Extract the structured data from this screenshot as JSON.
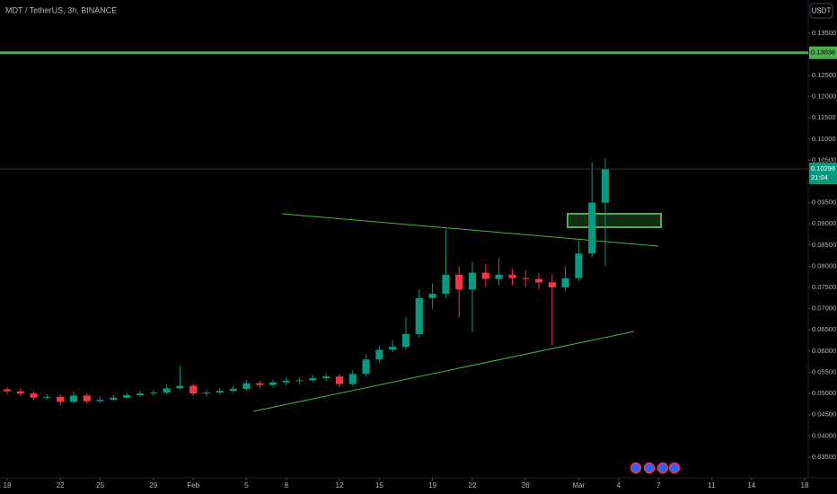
{
  "chart_data": {
    "type": "candlestick",
    "title": "MDT / TetherUS, 3h, BINANCE",
    "currency": "USDT",
    "x": [
      0,
      1,
      2,
      3,
      4,
      5,
      6,
      7,
      8,
      9,
      10,
      11,
      12,
      13,
      14,
      15,
      16,
      17,
      18,
      19,
      20,
      21,
      22,
      23,
      24,
      25,
      26,
      27,
      28,
      29,
      30,
      31,
      32,
      33,
      34,
      35,
      36,
      37,
      38,
      39,
      40,
      41,
      42,
      43,
      44,
      45
    ],
    "open": [
      0.051,
      0.0505,
      0.05,
      0.049,
      0.0492,
      0.048,
      0.0495,
      0.0482,
      0.0485,
      0.049,
      0.0496,
      0.05,
      0.0502,
      0.0512,
      0.0518,
      0.05,
      0.0502,
      0.0506,
      0.0511,
      0.0524,
      0.052,
      0.0526,
      0.053,
      0.0531,
      0.0536,
      0.054,
      0.0522,
      0.0546,
      0.058,
      0.0603,
      0.061,
      0.064,
      0.0725,
      0.0735,
      0.078,
      0.0745,
      0.0785,
      0.077,
      0.078,
      0.0772,
      0.077,
      0.0762,
      0.075,
      0.0772,
      0.083,
      0.095
    ],
    "high": [
      0.0515,
      0.0512,
      0.0505,
      0.0498,
      0.0498,
      0.0505,
      0.05,
      0.0492,
      0.0496,
      0.0502,
      0.0506,
      0.0508,
      0.052,
      0.0565,
      0.0522,
      0.0508,
      0.0512,
      0.0518,
      0.0532,
      0.053,
      0.0532,
      0.0537,
      0.0538,
      0.0543,
      0.0548,
      0.0545,
      0.0555,
      0.0592,
      0.0612,
      0.0625,
      0.068,
      0.0745,
      0.076,
      0.0888,
      0.08,
      0.081,
      0.0805,
      0.082,
      0.0795,
      0.079,
      0.0785,
      0.078,
      0.08,
      0.086,
      0.1045,
      0.1055
    ],
    "low": [
      0.0498,
      0.0494,
      0.0484,
      0.0485,
      0.0472,
      0.0476,
      0.0476,
      0.0478,
      0.0483,
      0.0488,
      0.0492,
      0.0495,
      0.0498,
      0.0508,
      0.0494,
      0.0494,
      0.0498,
      0.0502,
      0.0506,
      0.0512,
      0.0514,
      0.052,
      0.0522,
      0.0526,
      0.053,
      0.0515,
      0.0518,
      0.054,
      0.0574,
      0.0598,
      0.0604,
      0.0632,
      0.07,
      0.0725,
      0.068,
      0.0645,
      0.0752,
      0.0755,
      0.0755,
      0.0752,
      0.0745,
      0.0613,
      0.0742,
      0.0765,
      0.0822,
      0.08
    ],
    "close": [
      0.0505,
      0.05,
      0.049,
      0.0492,
      0.048,
      0.0495,
      0.0482,
      0.0485,
      0.049,
      0.0496,
      0.05,
      0.0502,
      0.0512,
      0.0518,
      0.05,
      0.0502,
      0.0506,
      0.0511,
      0.0524,
      0.052,
      0.0526,
      0.053,
      0.0531,
      0.0536,
      0.054,
      0.0522,
      0.0546,
      0.058,
      0.0603,
      0.061,
      0.064,
      0.0725,
      0.0735,
      0.078,
      0.0745,
      0.0785,
      0.077,
      0.078,
      0.0772,
      0.077,
      0.0762,
      0.075,
      0.0772,
      0.083,
      0.095,
      0.10296
    ],
    "up_color": "#089981",
    "down_color": "#f23645",
    "xlim": [
      -0.54,
      60.27
    ],
    "xticks": [
      {
        "value": 0,
        "label": "18"
      },
      {
        "value": 4,
        "label": "22"
      },
      {
        "value": 7,
        "label": "25"
      },
      {
        "value": 11,
        "label": "29"
      },
      {
        "value": 14,
        "label": "Feb"
      },
      {
        "value": 18,
        "label": "5"
      },
      {
        "value": 21,
        "label": "8"
      },
      {
        "value": 25,
        "label": "12"
      },
      {
        "value": 28,
        "label": "15"
      },
      {
        "value": 32,
        "label": "19"
      },
      {
        "value": 35,
        "label": "22"
      },
      {
        "value": 39,
        "label": "26"
      },
      {
        "value": 43,
        "label": "Mar"
      },
      {
        "value": 46,
        "label": "4"
      },
      {
        "value": 49,
        "label": "7"
      },
      {
        "value": 53,
        "label": "11"
      },
      {
        "value": 56,
        "label": "14"
      },
      {
        "value": 60,
        "label": "18"
      }
    ],
    "ylim": [
      0.0301,
      0.1428
    ],
    "yticks": [
      {
        "value": 0.135,
        "label": "0.13500"
      },
      {
        "value": 0.125,
        "label": "0.12500"
      },
      {
        "value": 0.12,
        "label": "0.12000"
      },
      {
        "value": 0.115,
        "label": "0.11500"
      },
      {
        "value": 0.11,
        "label": "0.11000"
      },
      {
        "value": 0.105,
        "label": "0.10500"
      },
      {
        "value": 0.095,
        "label": "0.09500"
      },
      {
        "value": 0.09,
        "label": "0.09000"
      },
      {
        "value": 0.085,
        "label": "0.08500"
      },
      {
        "value": 0.08,
        "label": "0.08000"
      },
      {
        "value": 0.075,
        "label": "0.07500"
      },
      {
        "value": 0.07,
        "label": "0.07000"
      },
      {
        "value": 0.065,
        "label": "0.06500"
      },
      {
        "value": 0.06,
        "label": "0.06000"
      },
      {
        "value": 0.055,
        "label": "0.05500"
      },
      {
        "value": 0.05,
        "label": "0.05000"
      },
      {
        "value": 0.045,
        "label": "0.04500"
      },
      {
        "value": 0.04,
        "label": "0.04000"
      },
      {
        "value": 0.035,
        "label": "0.03500"
      }
    ],
    "price_line": {
      "value": 0.13036,
      "label": "0.13036",
      "color": "#4caf50"
    },
    "last_price": {
      "value": 0.10296,
      "label": "0.10296",
      "countdown": "21:04",
      "color": "#089981"
    }
  }
}
